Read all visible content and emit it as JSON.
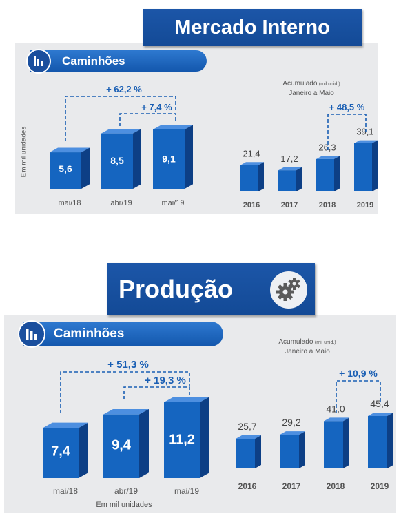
{
  "section1": {
    "title": "Mercado Interno",
    "pill": "Caminhões",
    "ylabel": "Em mil unidades",
    "monthly": {
      "categories": [
        "mai/18",
        "abr/19",
        "mai/19"
      ],
      "values": [
        "5,6",
        "8,5",
        "9,1"
      ],
      "pct_big": "+ 62,2 %",
      "pct_small": "+ 7,4 %"
    },
    "accum": {
      "title_main": "Acumulado",
      "title_unit": "(mil unid.)",
      "subtitle": "Janeiro a Maio",
      "categories": [
        "2016",
        "2017",
        "2018",
        "2019"
      ],
      "values": [
        "21,4",
        "17,2",
        "26,3",
        "39,1"
      ],
      "pct": "+ 48,5 %"
    }
  },
  "section2": {
    "title": "Produção",
    "pill": "Caminhões",
    "xlabel": "Em mil unidades",
    "monthly": {
      "categories": [
        "mai/18",
        "abr/19",
        "mai/19"
      ],
      "values": [
        "7,4",
        "9,4",
        "11,2"
      ],
      "pct_big": "+ 51,3 %",
      "pct_small": "+ 19,3 %"
    },
    "accum": {
      "title_main": "Acumulado",
      "title_unit": "(mil unid.)",
      "subtitle": "Janeiro a Maio",
      "categories": [
        "2016",
        "2017",
        "2018",
        "2019"
      ],
      "values": [
        "25,7",
        "29,2",
        "41,0",
        "45,4"
      ],
      "pct": "+ 10,9 %"
    }
  },
  "colors": {
    "bar_front": "#1565c0",
    "bar_side": "#0d3f85",
    "bar_top": "#4d8fe0",
    "accent": "#1a5fb4"
  },
  "icons": {
    "chart": "bar-chart-icon",
    "gears": "gears-icon"
  },
  "chart_data": [
    {
      "type": "bar",
      "title": "Mercado Interno - Caminhões",
      "categories": [
        "mai/18",
        "abr/19",
        "mai/19"
      ],
      "values": [
        5.6,
        8.5,
        9.1
      ],
      "ylabel": "Em mil unidades"
    },
    {
      "type": "bar",
      "title": "Mercado Interno - Acumulado (mil unid.) Janeiro a Maio",
      "categories": [
        "2016",
        "2017",
        "2018",
        "2019"
      ],
      "values": [
        21.4,
        17.2,
        26.3,
        39.1
      ]
    },
    {
      "type": "bar",
      "title": "Produção - Caminhões",
      "categories": [
        "mai/18",
        "abr/19",
        "mai/19"
      ],
      "values": [
        7.4,
        9.4,
        11.2
      ],
      "xlabel": "Em mil unidades"
    },
    {
      "type": "bar",
      "title": "Produção - Acumulado (mil unid.) Janeiro a Maio",
      "categories": [
        "2016",
        "2017",
        "2018",
        "2019"
      ],
      "values": [
        25.7,
        29.2,
        41.0,
        45.4
      ]
    }
  ]
}
